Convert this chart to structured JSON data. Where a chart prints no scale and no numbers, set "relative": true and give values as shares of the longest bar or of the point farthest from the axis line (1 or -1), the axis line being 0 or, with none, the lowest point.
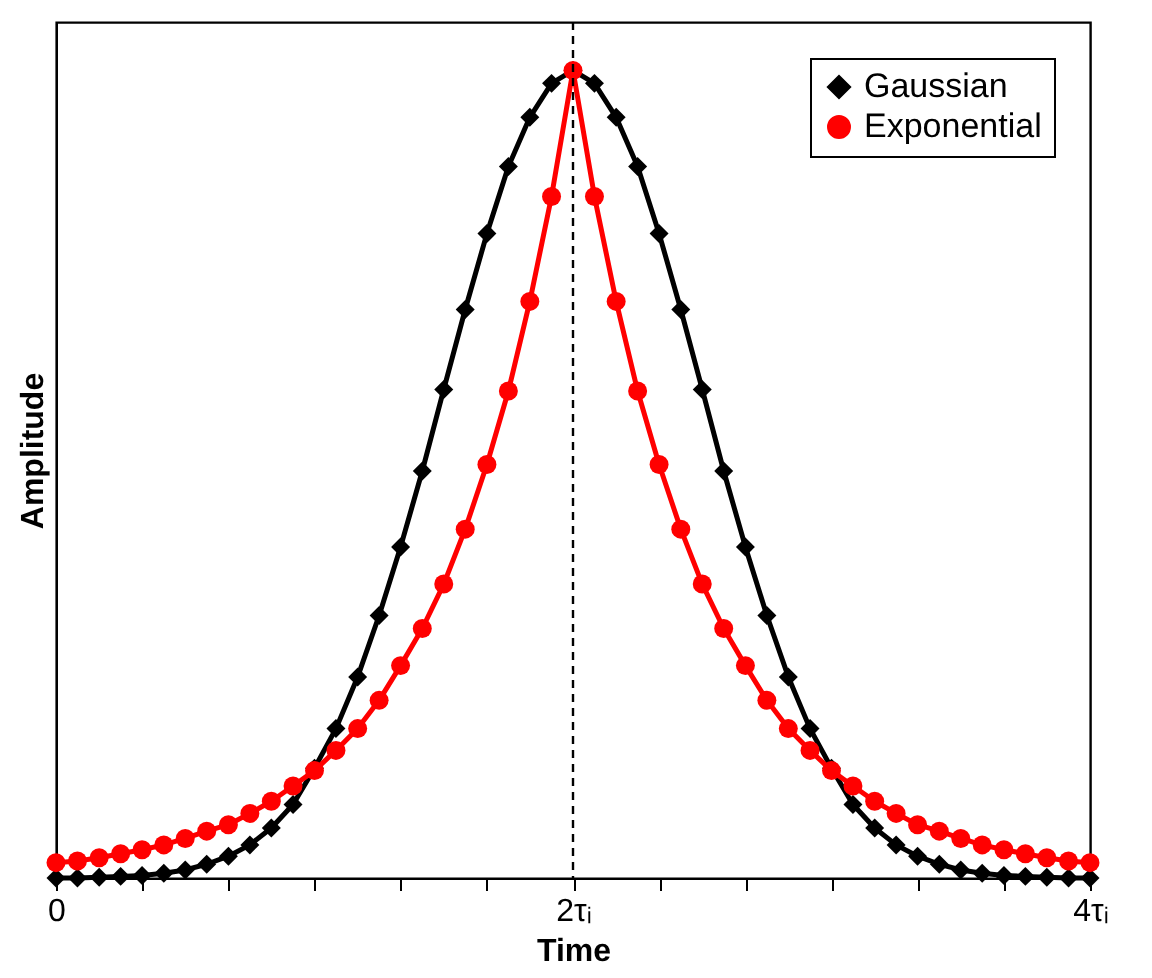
{
  "chart_data": {
    "type": "line",
    "xlabel": "Time",
    "ylabel": "Amplitude",
    "relative": true,
    "x": [
      0,
      0.083,
      0.167,
      0.25,
      0.333,
      0.417,
      0.5,
      0.583,
      0.667,
      0.75,
      0.833,
      0.917,
      1,
      1.083,
      1.167,
      1.25,
      1.333,
      1.417,
      1.5,
      1.583,
      1.667,
      1.75,
      1.833,
      1.917,
      2,
      2.083,
      2.167,
      2.25,
      2.333,
      2.417,
      2.5,
      2.583,
      2.667,
      2.75,
      2.833,
      2.917,
      3,
      3.083,
      3.167,
      3.25,
      3.333,
      3.417,
      3.5,
      3.583,
      3.667,
      3.75,
      3.833,
      3.917,
      4
    ],
    "xlim": [
      0,
      4
    ],
    "xticks": [
      0,
      {
        "value": 0.333,
        "label": null
      },
      {
        "value": 0.667,
        "label": null
      },
      {
        "value": 1,
        "label": null
      },
      {
        "value": 1.333,
        "label": null
      },
      {
        "value": 1.667,
        "label": null
      },
      {
        "value": 2,
        "label": "2τᵢ"
      },
      {
        "value": 2.333,
        "label": null
      },
      {
        "value": 2.667,
        "label": null
      },
      {
        "value": 3,
        "label": null
      },
      {
        "value": 3.333,
        "label": null
      },
      {
        "value": 3.667,
        "label": null
      },
      {
        "value": 4,
        "label": "4τᵢ"
      }
    ],
    "series": [
      {
        "name": "Gaussian",
        "color": "#000000",
        "marker": "diamond",
        "values": [
          0,
          0,
          0.001,
          0.002,
          0.003,
          0.006,
          0.01,
          0.017,
          0.027,
          0.041,
          0.062,
          0.091,
          0.136,
          0.185,
          0.249,
          0.325,
          0.41,
          0.504,
          0.605,
          0.704,
          0.798,
          0.881,
          0.942,
          0.984,
          1,
          0.984,
          0.942,
          0.881,
          0.798,
          0.704,
          0.605,
          0.504,
          0.41,
          0.325,
          0.249,
          0.185,
          0.136,
          0.091,
          0.062,
          0.041,
          0.027,
          0.017,
          0.01,
          0.006,
          0.003,
          0.002,
          0.001,
          0,
          0
        ]
      },
      {
        "name": "Exponential",
        "color": "#ff0000",
        "marker": "circle",
        "values": [
          0.019,
          0.021,
          0.025,
          0.03,
          0.035,
          0.041,
          0.049,
          0.058,
          0.066,
          0.08,
          0.095,
          0.114,
          0.133,
          0.158,
          0.185,
          0.22,
          0.263,
          0.309,
          0.364,
          0.432,
          0.512,
          0.603,
          0.714,
          0.844,
          1,
          0.844,
          0.714,
          0.603,
          0.512,
          0.432,
          0.364,
          0.309,
          0.263,
          0.22,
          0.185,
          0.158,
          0.133,
          0.114,
          0.095,
          0.08,
          0.066,
          0.058,
          0.049,
          0.041,
          0.035,
          0.03,
          0.025,
          0.021,
          0.019
        ]
      }
    ],
    "ref_lines": [
      {
        "axis": "x",
        "value": 2,
        "color": "#000000",
        "line_style": "dashed"
      }
    ],
    "legend": "top right"
  }
}
